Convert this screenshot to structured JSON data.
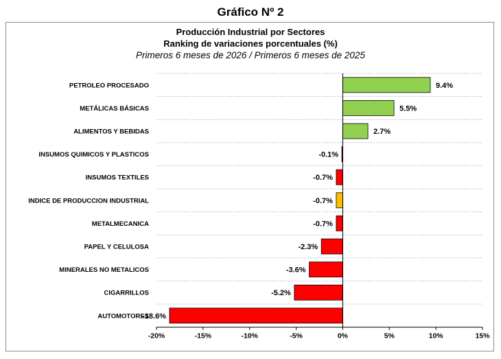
{
  "page_title": "Gráfico Nº 2",
  "chart_data": {
    "type": "bar",
    "orientation": "horizontal",
    "title": "Producción Industrial por Sectores",
    "subtitle": "Ranking de variaciones porcentuales (%)",
    "subtitle2": "Primeros 6 meses de 2026 / Primeros 6 meses de 2025",
    "categories": [
      "PETROLEO PROCESADO",
      "METÁLICAS BÁSICAS",
      "ALIMENTOS Y BEBIDAS",
      "INSUMOS QUIMICOS Y PLASTICOS",
      "INSUMOS TEXTILES",
      "INDICE DE PRODUCCION INDUSTRIAL",
      "METALMECANICA",
      "PAPEL Y CELULOSA",
      "MINERALES NO METALICOS",
      "CIGARRILLOS",
      "AUTOMOTORES"
    ],
    "values": [
      9.4,
      5.5,
      2.7,
      -0.1,
      -0.7,
      -0.7,
      -0.7,
      -2.3,
      -3.6,
      -5.2,
      -18.6
    ],
    "value_labels": [
      "9.4%",
      "5.5%",
      "2.7%",
      "-0.1%",
      "-0.7%",
      "-0.7%",
      "-0.7%",
      "-2.3%",
      "-3.6%",
      "-5.2%",
      "-18.6%"
    ],
    "bar_colors": [
      "#92d050",
      "#92d050",
      "#92d050",
      "#ff0000",
      "#ff0000",
      "#ffc000",
      "#ff0000",
      "#ff0000",
      "#ff0000",
      "#ff0000",
      "#ff0000"
    ],
    "xlim": [
      -20,
      15
    ],
    "xticks": [
      -20,
      -15,
      -10,
      -5,
      0,
      5,
      10,
      15
    ],
    "xtick_labels": [
      "-20%",
      "-15%",
      "-10%",
      "-5%",
      "0%",
      "5%",
      "10%",
      "15%"
    ],
    "xlabel": "",
    "ylabel": "",
    "grid": "horizontal dashed",
    "legend": "none"
  }
}
